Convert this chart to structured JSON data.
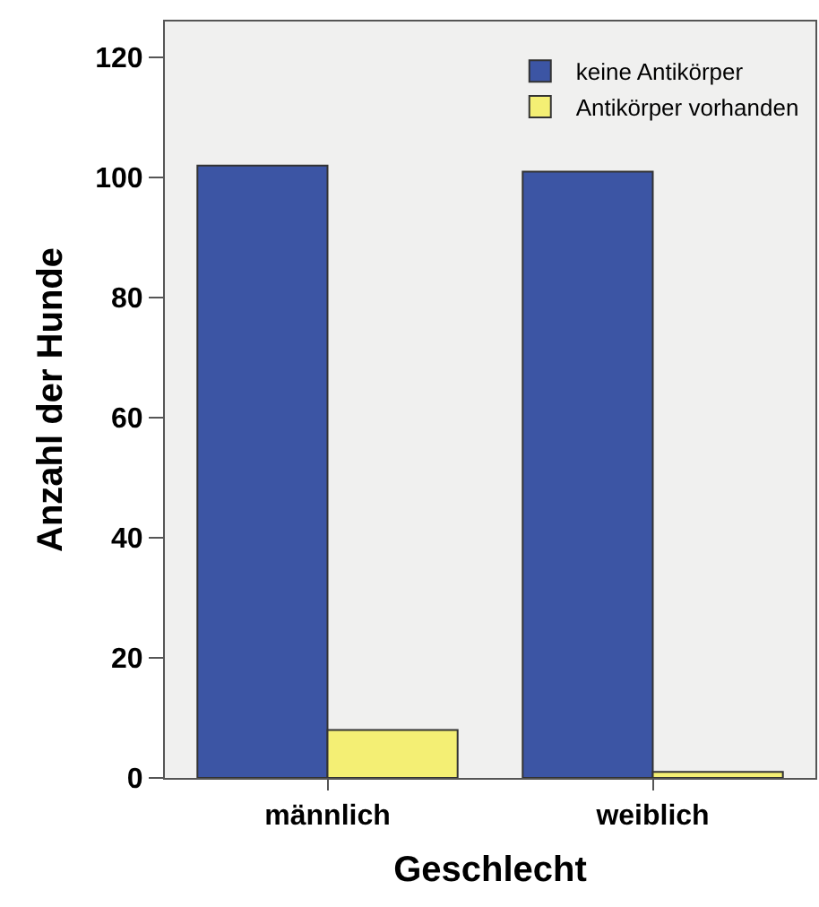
{
  "chart_data": {
    "type": "bar",
    "xlabel": "Geschlecht",
    "ylabel": "Anzahl der Hunde",
    "categories": [
      "männlich",
      "weiblich"
    ],
    "series": [
      {
        "name": "keine Antikörper",
        "color": "#3c55a4",
        "values": [
          102,
          101
        ]
      },
      {
        "name": "Antikörper vorhanden",
        "color": "#f4ef74",
        "values": [
          8,
          1
        ]
      }
    ],
    "ylim": [
      0,
      126
    ],
    "yticks": [
      0,
      20,
      40,
      60,
      80,
      100,
      120
    ],
    "grid": false,
    "legend": "top right"
  }
}
